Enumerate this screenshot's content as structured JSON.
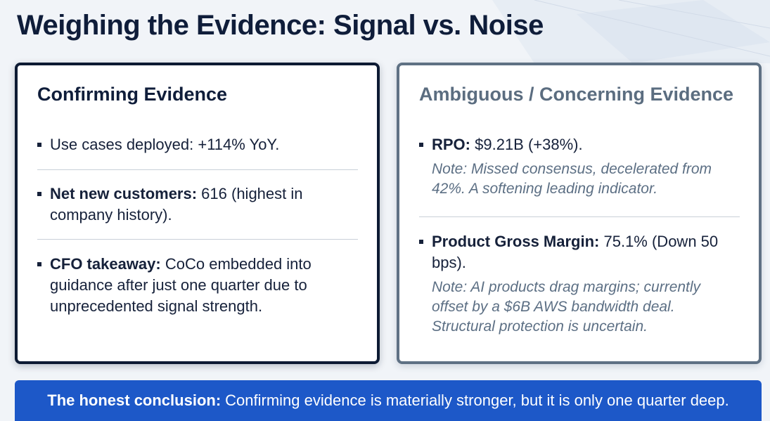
{
  "title": "Weighing the Evidence: Signal vs. Noise",
  "confirming": {
    "heading": "Confirming Evidence",
    "items": [
      {
        "label": "",
        "text": "Use cases deployed: +114% YoY."
      },
      {
        "label": "Net new customers:",
        "text": "616 (highest in company history)."
      },
      {
        "label": "CFO takeaway:",
        "text": "CoCo embedded into guidance after just one quarter due to unprecedented signal strength."
      }
    ]
  },
  "concerning": {
    "heading": "Ambiguous / Concerning Evidence",
    "items": [
      {
        "label": "RPO:",
        "text": "$9.21B (+38%).",
        "note": "Note: Missed consensus, decelerated from 42%. A softening leading indicator."
      },
      {
        "label": "Product Gross Margin:",
        "text": "75.1% (Down 50 bps).",
        "note": "Note: AI products drag margins; currently offset by a $6B AWS bandwidth deal. Structural protection is uncertain."
      }
    ]
  },
  "conclusion": {
    "label": "The honest conclusion:",
    "text": "Confirming evidence is materially stronger, but it is only one quarter deep."
  },
  "colors": {
    "accent": "#1d58c8",
    "confirming_border": "#0d1a33",
    "concerning_border": "#5f7184"
  }
}
